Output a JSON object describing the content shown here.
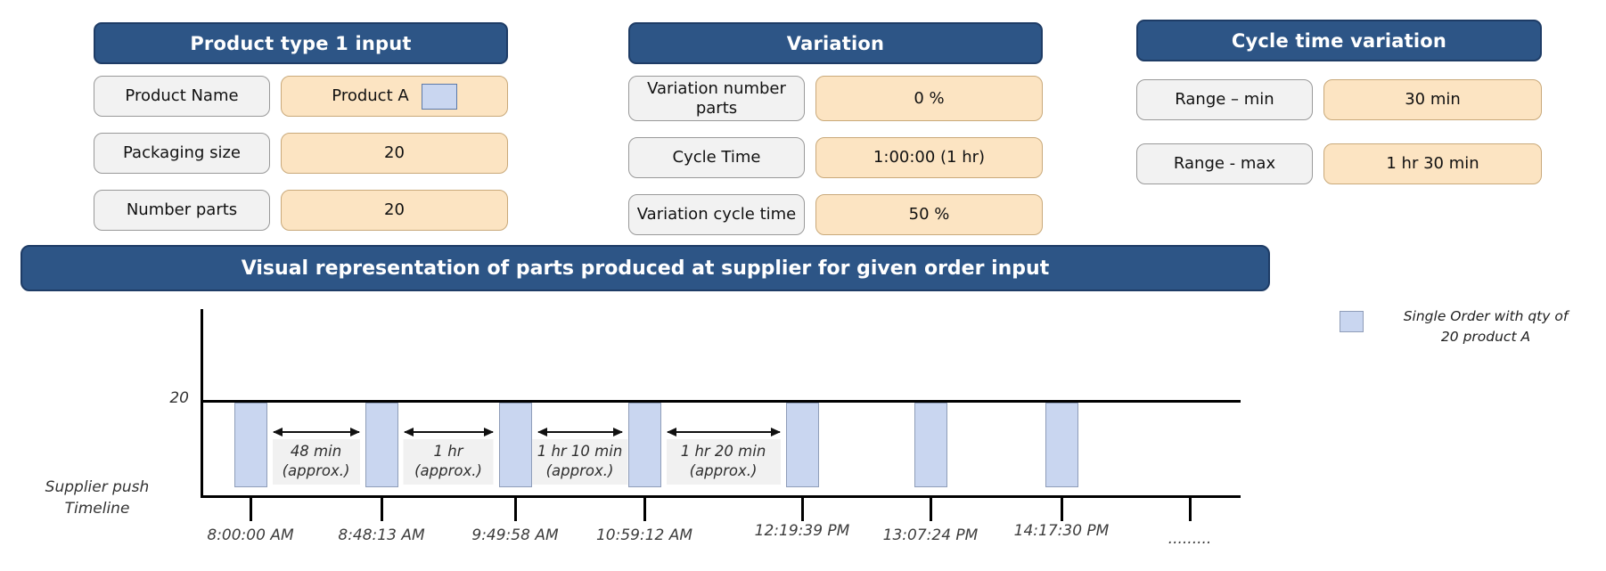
{
  "panels": [
    {
      "title": "Product type 1 input",
      "rows": [
        {
          "label": "Product Name",
          "value": "Product A",
          "has_swatch": true
        },
        {
          "label": "Packaging size",
          "value": "20"
        },
        {
          "label": "Number parts",
          "value": "20"
        }
      ]
    },
    {
      "title": "Variation",
      "rows": [
        {
          "label": "Variation number parts",
          "value": "0 %"
        },
        {
          "label": "Cycle Time",
          "value": "1:00:00 (1 hr)"
        },
        {
          "label": "Variation cycle time",
          "value": "50 %"
        }
      ]
    },
    {
      "title": "Cycle time variation",
      "rows": [
        {
          "label": "Range – min",
          "value": "30 min"
        },
        {
          "label": "Range - max",
          "value": "1 hr 30 min"
        }
      ]
    }
  ],
  "banner": {
    "title": "Visual representation of parts produced at supplier for given order input"
  },
  "legend": {
    "lines": [
      "Single Order with qty of",
      "20 product A"
    ]
  },
  "chart_data": {
    "type": "bar",
    "title": "Visual representation of parts produced at supplier for given order input",
    "ylabel_lines": [
      "Supplier push",
      "Timeline"
    ],
    "y_reference": {
      "label": "20",
      "value": 20
    },
    "bar_quantity_per_order": 20,
    "values": [
      20,
      20,
      20,
      20,
      20,
      20,
      20
    ],
    "categories": [
      "8:00:00 AM",
      "8:48:13 AM",
      "9:49:58 AM",
      "10:59:12 AM",
      "12:19:39 PM",
      "13:07:24 PM",
      "14:17:30 PM"
    ],
    "x_ticks": [
      {
        "label": "8:00:00 AM",
        "x": 281,
        "bar": true,
        "dy": 0
      },
      {
        "label": "8:48:13 AM",
        "x": 428,
        "bar": true,
        "dy": 0
      },
      {
        "label": "9:49:58 AM",
        "x": 578,
        "bar": true,
        "dy": 0
      },
      {
        "label": "10:59:12 AM",
        "x": 723,
        "bar": true,
        "dy": 0
      },
      {
        "label": "12:19:39 PM",
        "x": 900,
        "bar": true,
        "dy": -5
      },
      {
        "label": "13:07:24 PM",
        "x": 1044,
        "bar": true,
        "dy": 0
      },
      {
        "label": "14:17:30 PM",
        "x": 1191,
        "bar": true,
        "dy": -5
      },
      {
        "label": ".........",
        "x": 1335,
        "bar": false,
        "dy": 4
      }
    ],
    "gap_annotations": [
      {
        "line1": "48 min",
        "line2": "(approx.)",
        "from": 0,
        "to": 1
      },
      {
        "line1": "1 hr",
        "line2": "(approx.)",
        "from": 1,
        "to": 2
      },
      {
        "line1": "1 hr 10 min",
        "line2": "(approx.)",
        "from": 2,
        "to": 3
      },
      {
        "line1": "1 hr 20 min",
        "line2": "(approx.)",
        "from": 3,
        "to": 4
      }
    ],
    "legend_position": "top-right",
    "grid": false
  },
  "colors": {
    "header_blue": "#2d5586",
    "header_border": "#1e3c66",
    "label_fill": "#f2f2f2",
    "label_border": "#999999",
    "value_fill": "#fce4c2",
    "value_border": "#c9a97a",
    "bar_fill": "#c9d6f0",
    "bar_border": "#8f9db8",
    "annotation_bg": "#f1f1f1",
    "text_dark": "#3d3d3d"
  }
}
